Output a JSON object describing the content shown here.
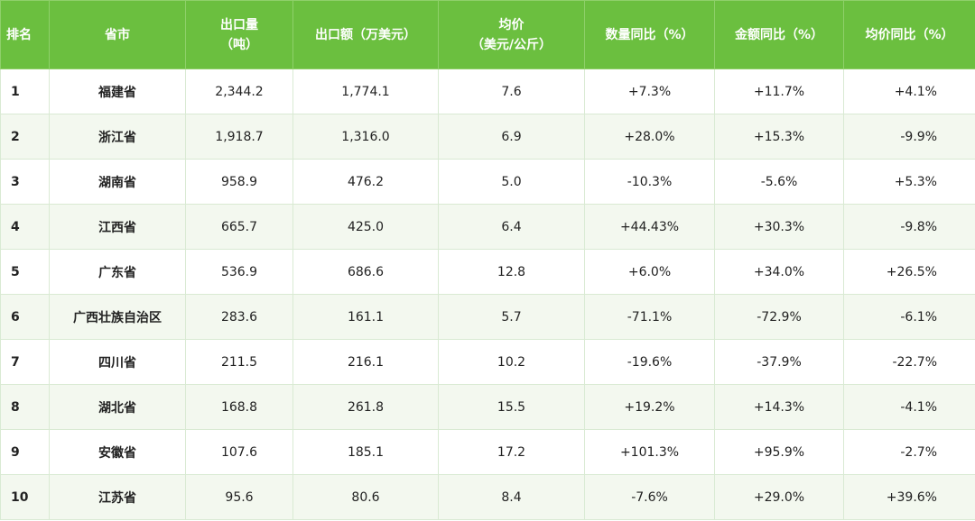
{
  "table": {
    "headers": [
      {
        "line1": "排名",
        "line2": ""
      },
      {
        "line1": "省市",
        "line2": ""
      },
      {
        "line1": "出口量",
        "line2": "（吨）"
      },
      {
        "line1": "出口额（万美元）",
        "line2": ""
      },
      {
        "line1": "均价",
        "line2": "（美元/公斤）"
      },
      {
        "line1": "数量同比（%）",
        "line2": ""
      },
      {
        "line1": "金额同比（%）",
        "line2": ""
      },
      {
        "line1": "均价同比（%）",
        "line2": ""
      }
    ],
    "rows": [
      {
        "rank": "1",
        "province": "福建省",
        "volume": "2,344.2",
        "value": "1,774.1",
        "price": "7.6",
        "vol_yoy": "+7.3%",
        "val_yoy": "+11.7%",
        "price_yoy": "+4.1%"
      },
      {
        "rank": "2",
        "province": "浙江省",
        "volume": "1,918.7",
        "value": "1,316.0",
        "price": "6.9",
        "vol_yoy": "+28.0%",
        "val_yoy": "+15.3%",
        "price_yoy": "-9.9%"
      },
      {
        "rank": "3",
        "province": "湖南省",
        "volume": "958.9",
        "value": "476.2",
        "price": "5.0",
        "vol_yoy": "-10.3%",
        "val_yoy": "-5.6%",
        "price_yoy": "+5.3%"
      },
      {
        "rank": "4",
        "province": "江西省",
        "volume": "665.7",
        "value": "425.0",
        "price": "6.4",
        "vol_yoy": "+44.43%",
        "val_yoy": "+30.3%",
        "price_yoy": "-9.8%"
      },
      {
        "rank": "5",
        "province": "广东省",
        "volume": "536.9",
        "value": "686.6",
        "price": "12.8",
        "vol_yoy": "+6.0%",
        "val_yoy": "+34.0%",
        "price_yoy": "+26.5%"
      },
      {
        "rank": "6",
        "province": "广西壮族自治区",
        "volume": "283.6",
        "value": "161.1",
        "price": "5.7",
        "vol_yoy": "-71.1%",
        "val_yoy": "-72.9%",
        "price_yoy": "-6.1%"
      },
      {
        "rank": "7",
        "province": "四川省",
        "volume": "211.5",
        "value": "216.1",
        "price": "10.2",
        "vol_yoy": "-19.6%",
        "val_yoy": "-37.9%",
        "price_yoy": "-22.7%"
      },
      {
        "rank": "8",
        "province": "湖北省",
        "volume": "168.8",
        "value": "261.8",
        "price": "15.5",
        "vol_yoy": "+19.2%",
        "val_yoy": "+14.3%",
        "price_yoy": "-4.1%"
      },
      {
        "rank": "9",
        "province": "安徽省",
        "volume": "107.6",
        "value": "185.1",
        "price": "17.2",
        "vol_yoy": "+101.3%",
        "val_yoy": "+95.9%",
        "price_yoy": "-2.7%"
      },
      {
        "rank": "10",
        "province": "江苏省",
        "volume": "95.6",
        "value": "80.6",
        "price": "8.4",
        "vol_yoy": "-7.6%",
        "val_yoy": "+29.0%",
        "price_yoy": "+39.6%"
      }
    ]
  },
  "colors": {
    "header_bg": "#6bbf3f",
    "header_text": "#ffffff",
    "row_alt_bg": "#f3f8ef"
  }
}
